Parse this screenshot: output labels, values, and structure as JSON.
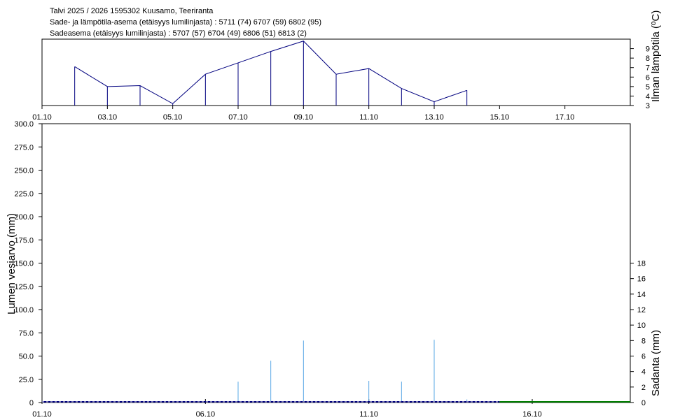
{
  "header": {
    "line1": "Talvi 2025 / 2026 1595302 Kuusamo, Teeriranta",
    "line2": "Sade- ja lämpötila-asema (etäisyys lumilinjasta) :   5711 (74) 6707 (59) 6802 (95)",
    "line3": "Sadeasema (etäisyys lumilinjasta) :   5707 (57) 6704 (49) 6806 (51) 6813 (2)"
  },
  "colors": {
    "temperature_line": "#00007f",
    "precipitation": "#5aa8e6",
    "snow_base": "#00007f",
    "snow_tail": "#007f00",
    "axis": "#000000"
  },
  "chart_data": [
    {
      "type": "line",
      "panel": "temperature",
      "ylabel": "Ilman lämpötila (ºC)",
      "y_ticks": [
        3,
        4,
        5,
        6,
        7,
        8,
        9
      ],
      "ylim": [
        3,
        10
      ],
      "x_tick_labels": [
        "01.10",
        "03.10",
        "05.10",
        "07.10",
        "09.10",
        "11.10",
        "13.10",
        "15.10",
        "17.10"
      ],
      "x_range_days": [
        1,
        19
      ],
      "series": [
        {
          "x": [
            2,
            3,
            4,
            5,
            6,
            7,
            8,
            9,
            10,
            11,
            12,
            13,
            14
          ],
          "values": [
            7.1,
            5.0,
            5.1,
            3.2,
            6.3,
            7.5,
            8.7,
            9.8,
            6.3,
            6.9,
            4.8,
            3.4,
            4.6
          ]
        }
      ]
    },
    {
      "type": "bar",
      "panel": "snow-and-precipitation",
      "ylabel_left": "Lumen vesiarvo (mm)",
      "ylabel_right": "Sadanta (mm)",
      "y_left_ticks": [
        "0",
        "25.0",
        "50.0",
        "75.0",
        "100.0",
        "125.0",
        "150.0",
        "175.0",
        "200.0",
        "225.0",
        "250.0",
        "275.0",
        "300.0"
      ],
      "ylim_left": [
        0,
        300
      ],
      "y_right_ticks": [
        0,
        2,
        4,
        6,
        8,
        10,
        12,
        14,
        16,
        18
      ],
      "ylim_right": [
        0,
        36
      ],
      "x_tick_labels": [
        "01.10",
        "06.10",
        "11.10",
        "16.10"
      ],
      "x_range_days": [
        1,
        19
      ],
      "precipitation": {
        "x": [
          7,
          8,
          9,
          11,
          12,
          13,
          14
        ],
        "values": [
          2.7,
          5.4,
          8.0,
          2.8,
          2.7,
          8.1,
          0.4
        ]
      },
      "snow_water_equivalent": {
        "x": [
          1,
          15,
          19
        ],
        "values": [
          0,
          0,
          0
        ]
      }
    }
  ]
}
